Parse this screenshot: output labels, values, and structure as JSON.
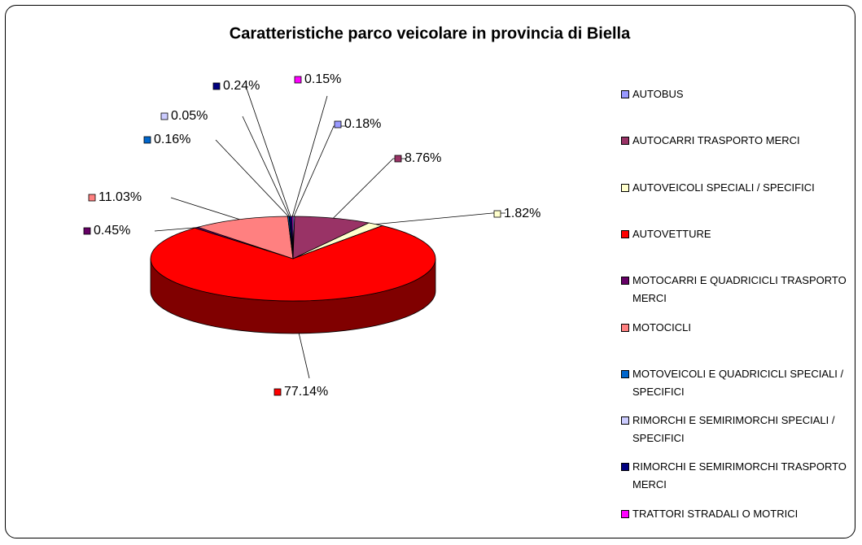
{
  "chart_data": {
    "type": "pie3d",
    "title": "Caratteristiche parco veicolare in provincia di Biella",
    "categories": [
      "AUTOBUS",
      "AUTOCARRI TRASPORTO MERCI",
      "AUTOVEICOLI SPECIALI / SPECIFICI",
      "AUTOVETTURE",
      "MOTOCARRI E QUADRICICLI TRASPORTO MERCI",
      "MOTOCICLI",
      "MOTOVEICOLI E QUADRICICLI SPECIALI / SPECIFICI",
      "RIMORCHI E SEMIRIMORCHI SPECIALI / SPECIFICI",
      "RIMORCHI E SEMIRIMORCHI TRASPORTO MERCI",
      "TRATTORI STRADALI O MOTRICI"
    ],
    "values": [
      0.18,
      8.76,
      1.82,
      77.14,
      0.45,
      11.03,
      0.16,
      0.05,
      0.24,
      0.15
    ],
    "value_labels": [
      "0.18%",
      "8.76%",
      "1.82%",
      "77.14%",
      "0.45%",
      "11.03%",
      "0.16%",
      "0.05%",
      "0.24%",
      "0.15%"
    ],
    "colors": [
      "#9999ff",
      "#993366",
      "#ffffcc",
      "#ff0000",
      "#660066",
      "#ff8080",
      "#0066cc",
      "#ccccff",
      "#000080",
      "#ff00ff"
    ],
    "legend": "right"
  }
}
